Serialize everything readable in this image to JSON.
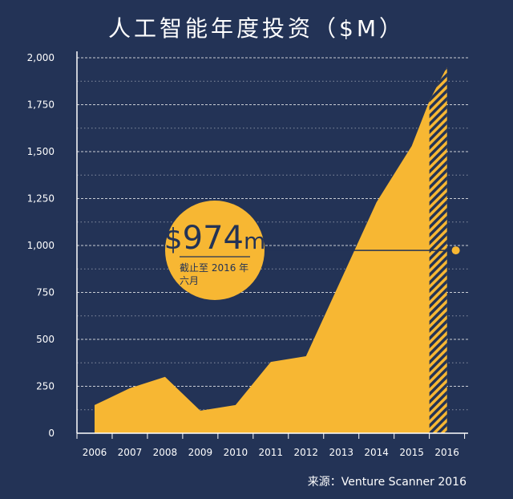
{
  "chart_data": {
    "type": "area",
    "title": "人工智能年度投资（$M）",
    "xlabel": "",
    "ylabel": "",
    "categories": [
      "2006",
      "2007",
      "2008",
      "2009",
      "2010",
      "2011",
      "2012",
      "2013",
      "2014",
      "2015",
      "2016"
    ],
    "y_ticks": [
      "0",
      "250",
      "500",
      "750",
      "1,000",
      "1,250",
      "1,500",
      "1,750",
      "2,000"
    ],
    "ylim": [
      0,
      2000
    ],
    "grid": true,
    "series": [
      {
        "x": [
          2006,
          2007,
          2008,
          2009,
          2010,
          2011,
          2012,
          2013,
          2014,
          2015,
          2015.5,
          2016
        ],
        "values": [
          150,
          240,
          300,
          120,
          150,
          380,
          410,
          820,
          1230,
          1530,
          1770,
          1950
        ],
        "color": "#f7b733"
      }
    ],
    "hatched_region": {
      "from": 2015.5,
      "to": 2016,
      "color": "#f7b733"
    },
    "annotation": {
      "value_prefix": "$",
      "value_number": "974",
      "value_suffix": "m",
      "note_line1": "截止至 2016 年",
      "note_line2": "六月",
      "marker_y": 974,
      "color": "#f7b733"
    },
    "source": "来源：Venture Scanner 2016",
    "colors": {
      "background": "#233356",
      "text": "#ffffff",
      "grid": "#ffffff"
    }
  }
}
